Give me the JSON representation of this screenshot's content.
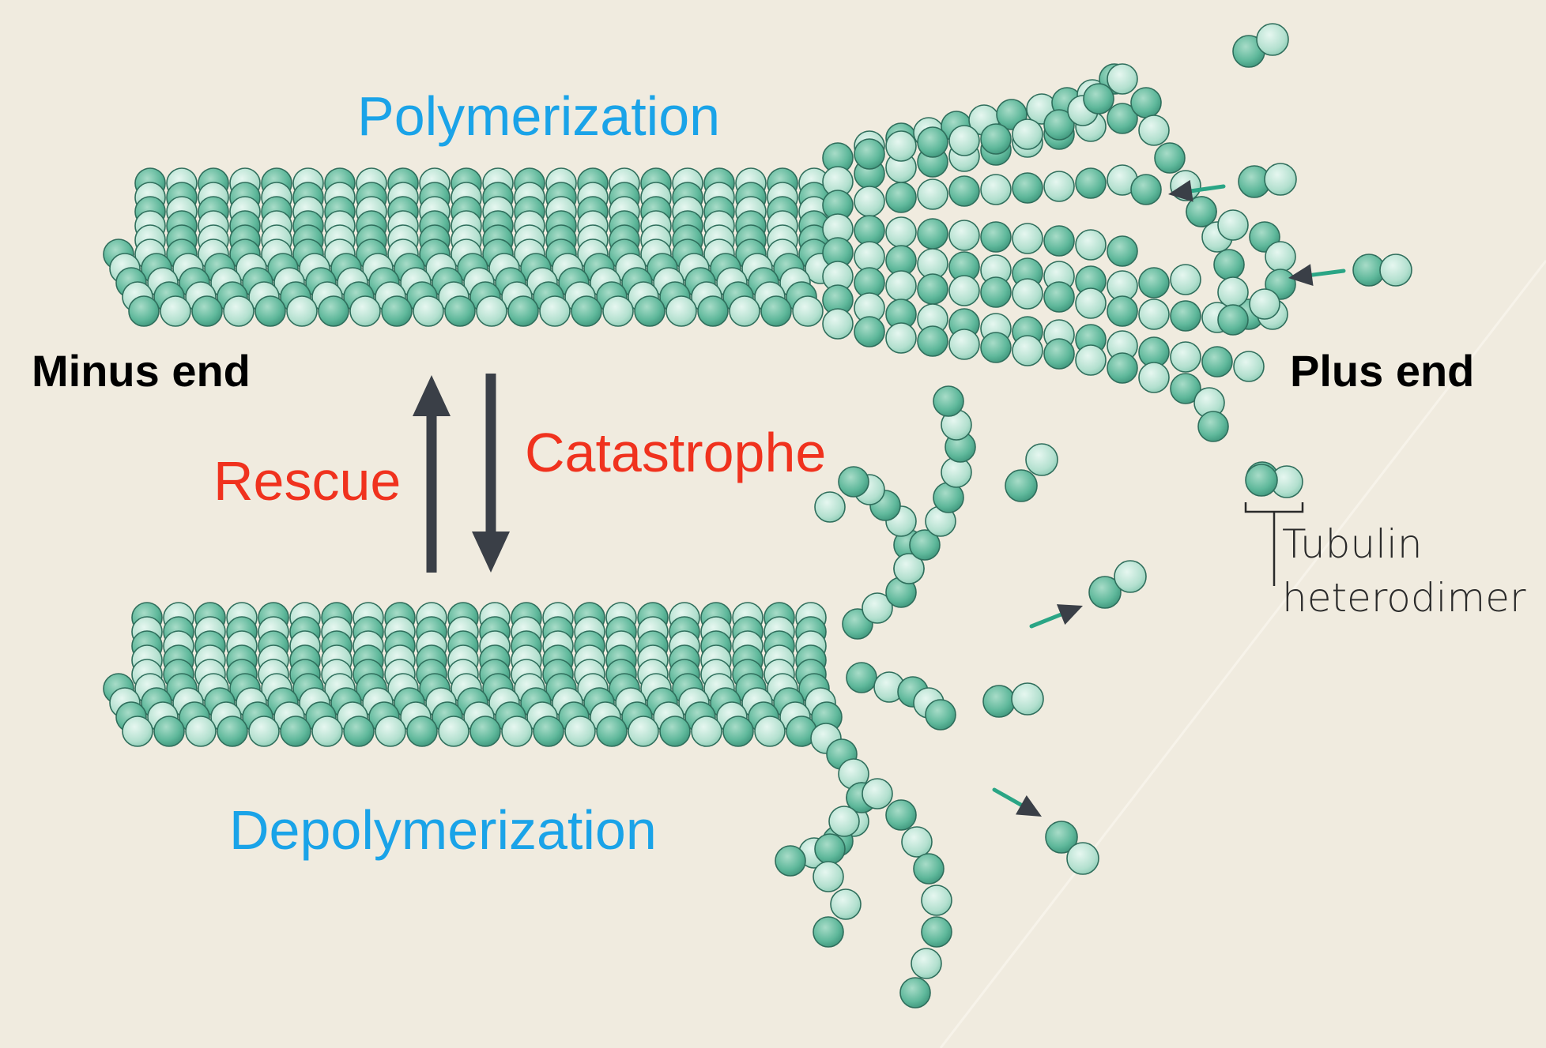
{
  "labels": {
    "polymerization": "Polymerization",
    "depolymerization": "Depolymerization",
    "rescue": "Rescue",
    "catastrophe": "Catastrophe",
    "minus_end": "Minus end",
    "plus_end": "Plus end",
    "tubulin_line1": "Tubulin",
    "tubulin_line2": "heterodimer"
  },
  "colors": {
    "background": "#f0ebdf",
    "subunit_light": "#bfe6d7",
    "subunit_dark": "#5fb89b",
    "subunit_outline": "#2f6e5c",
    "arrow": "#3a3f47",
    "small_arrow_tail": "#2aa585",
    "polymer_text": "#1aa3e8",
    "transition_text": "#f0321e"
  }
}
